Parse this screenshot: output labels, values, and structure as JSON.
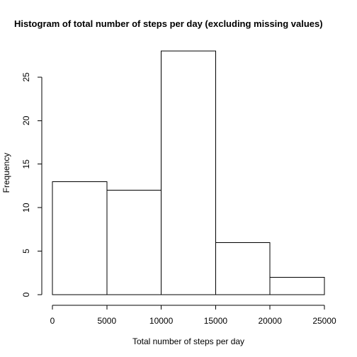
{
  "chart_data": {
    "type": "bar",
    "title": "Histogram of total number of steps per day (excluding missing values)",
    "xlabel": "Total number of steps per day",
    "ylabel": "Frequency",
    "bins": [
      {
        "from": 0,
        "to": 5000,
        "count": 13
      },
      {
        "from": 5000,
        "to": 10000,
        "count": 12
      },
      {
        "from": 10000,
        "to": 15000,
        "count": 28
      },
      {
        "from": 15000,
        "to": 20000,
        "count": 6
      },
      {
        "from": 20000,
        "to": 25000,
        "count": 2
      }
    ],
    "x_ticks": [
      0,
      5000,
      10000,
      15000,
      20000,
      25000
    ],
    "y_ticks": [
      0,
      5,
      10,
      15,
      20,
      25
    ],
    "xlim": [
      0,
      25000
    ],
    "ylim": [
      0,
      28
    ],
    "grid": false,
    "bar_fill": "#ffffff",
    "bar_stroke": "#000000"
  }
}
